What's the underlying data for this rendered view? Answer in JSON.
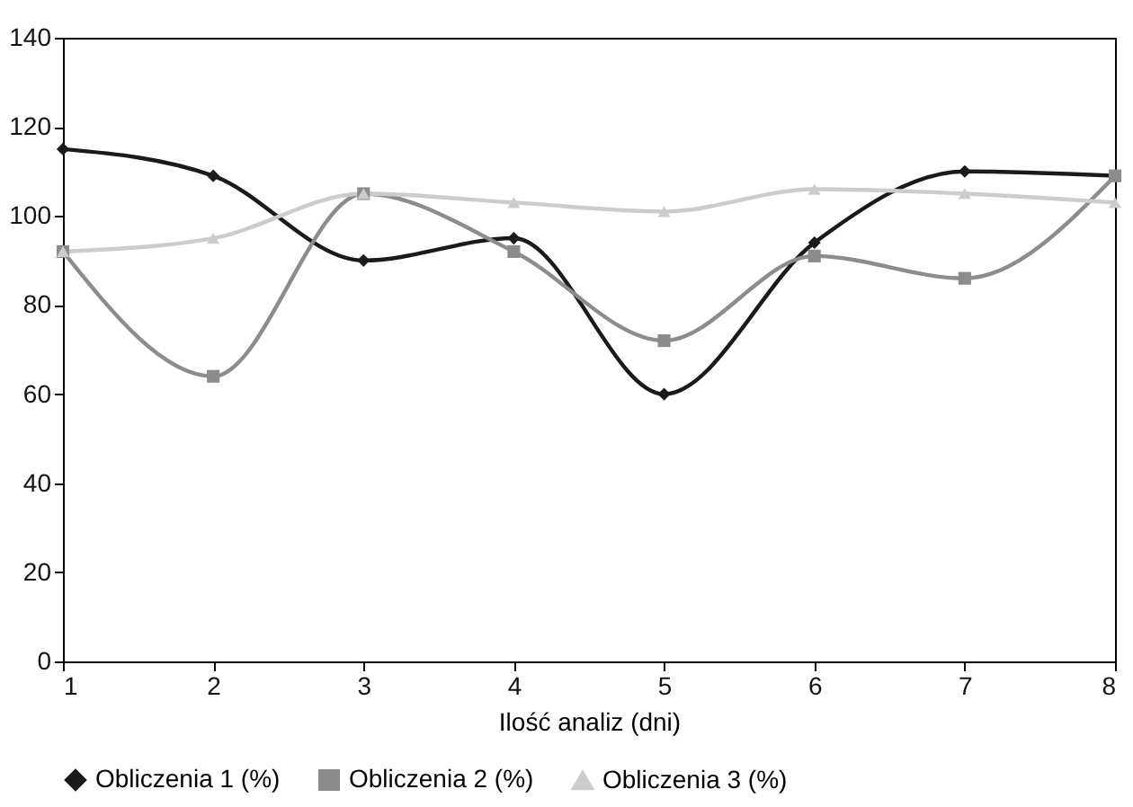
{
  "chart_data": {
    "type": "line",
    "xlabel": "Ilość analiz (dni)",
    "x": [
      1,
      2,
      3,
      4,
      5,
      6,
      7,
      8
    ],
    "series": [
      {
        "name": "Obliczenia 1 (%)",
        "color": "#1a1a1a",
        "marker": "diamond",
        "values": [
          115,
          109,
          90,
          95,
          60,
          94,
          110,
          109
        ]
      },
      {
        "name": "Obliczenia 2 (%)",
        "color": "#8c8c8c",
        "marker": "square",
        "values": [
          92,
          64,
          105,
          92,
          72,
          91,
          86,
          109
        ]
      },
      {
        "name": "Obliczenia 3 (%)",
        "color": "#cccccc",
        "marker": "triangle",
        "values": [
          92,
          95,
          105,
          103,
          101,
          106,
          105,
          103
        ]
      }
    ],
    "xlim": [
      1,
      8
    ],
    "xticks": [
      1,
      2,
      3,
      4,
      5,
      6,
      7,
      8
    ],
    "ylim": [
      0,
      140
    ],
    "yticks": [
      0,
      20,
      40,
      60,
      80,
      100,
      120,
      140
    ],
    "grid": false,
    "legend": "bottom"
  }
}
